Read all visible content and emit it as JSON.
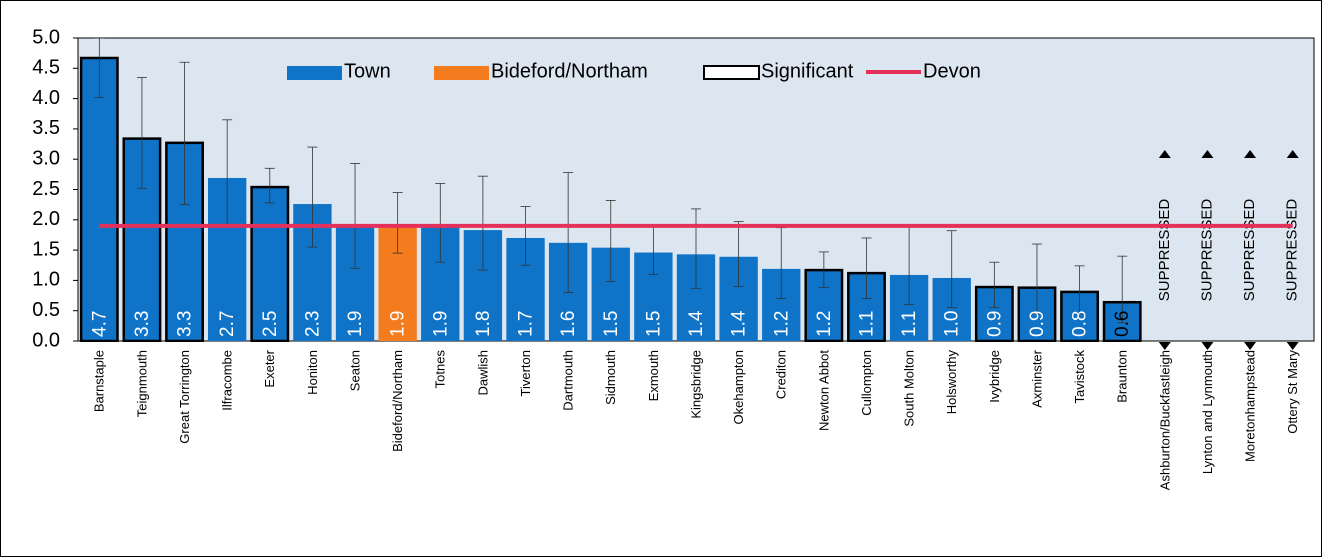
{
  "chart_data": {
    "type": "bar",
    "categories": [
      "Barnstaple",
      "Teignmouth",
      "Great Torrington",
      "Ilfracombe",
      "Exeter",
      "Honiton",
      "Seaton",
      "Bideford/Northam",
      "Totnes",
      "Dawlish",
      "Tiverton",
      "Dartmouth",
      "Sidmouth",
      "Exmouth",
      "Kingsbridge",
      "Okehampton",
      "Crediton",
      "Newton Abbot",
      "Cullompton",
      "South Molton",
      "Holsworthy",
      "Ivybridge",
      "Axminster",
      "Tavistock",
      "Braunton",
      "Ashburton/Buckfastleigh",
      "Lynton and Lynmouth",
      "Moretonhampstead",
      "Ottery St Mary"
    ],
    "values": [
      4.67,
      3.34,
      3.27,
      2.69,
      2.54,
      2.26,
      1.91,
      1.9,
      1.88,
      1.83,
      1.7,
      1.62,
      1.54,
      1.46,
      1.43,
      1.39,
      1.19,
      1.17,
      1.12,
      1.09,
      1.04,
      0.89,
      0.88,
      0.81,
      0.64,
      null,
      null,
      null,
      null
    ],
    "value_labels": [
      "4.7",
      "3.3",
      "3.3",
      "2.7",
      "2.5",
      "2.3",
      "1.9",
      "1.9",
      "1.9",
      "1.8",
      "1.7",
      "1.6",
      "1.5",
      "1.5",
      "1.4",
      "1.4",
      "1.2",
      "1.2",
      "1.1",
      "1.1",
      "1.0",
      "0.9",
      "0.9",
      "0.8",
      "0.6",
      "SUPPRESSED",
      "SUPPRESSED",
      "SUPPRESSED",
      "SUPPRESSED"
    ],
    "ci_low": [
      4.02,
      2.52,
      2.25,
      1.9,
      2.28,
      1.55,
      1.2,
      1.45,
      1.3,
      1.17,
      1.25,
      0.8,
      0.98,
      1.1,
      0.87,
      0.9,
      0.7,
      0.88,
      0.7,
      0.6,
      0.55,
      0.55,
      0.45,
      0.45,
      0.3,
      null,
      null,
      null,
      null
    ],
    "ci_high": [
      5.0,
      4.35,
      4.6,
      3.65,
      2.85,
      3.2,
      2.93,
      2.45,
      2.6,
      2.72,
      2.22,
      2.78,
      2.32,
      1.9,
      2.18,
      1.97,
      1.87,
      1.47,
      1.7,
      1.9,
      1.82,
      1.3,
      1.6,
      1.24,
      1.4,
      null,
      null,
      null,
      null
    ],
    "significant": [
      true,
      true,
      true,
      false,
      true,
      false,
      false,
      false,
      false,
      false,
      false,
      false,
      false,
      false,
      false,
      false,
      false,
      true,
      true,
      false,
      false,
      true,
      true,
      true,
      true,
      false,
      false,
      false,
      false
    ],
    "highlight": [
      false,
      false,
      false,
      false,
      false,
      false,
      false,
      true,
      false,
      false,
      false,
      false,
      false,
      false,
      false,
      false,
      false,
      false,
      false,
      false,
      false,
      false,
      false,
      false,
      false,
      false,
      false,
      false,
      false
    ],
    "legend": [
      {
        "name": "Town",
        "color": "#0f74c7"
      },
      {
        "name": "Bideford/Northam",
        "color": "#f57b1f"
      },
      {
        "name": "Significant",
        "color": "#000000"
      },
      {
        "name": "Devon",
        "color": "#e5305a"
      }
    ],
    "reference_value": 1.9,
    "ylim": [
      0,
      5
    ],
    "yticks": [
      {
        "value": 0,
        "label": "0.0"
      },
      {
        "value": 0.5,
        "label": "0.5"
      },
      {
        "value": 1,
        "label": "1.0"
      },
      {
        "value": 1.5,
        "label": "1.5"
      },
      {
        "value": 2,
        "label": "2.0"
      },
      {
        "value": 2.5,
        "label": "2.5"
      },
      {
        "value": 3,
        "label": "3.0"
      },
      {
        "value": 3.5,
        "label": "3.5"
      },
      {
        "value": 4,
        "label": "4.0"
      },
      {
        "value": 4.5,
        "label": "4.5"
      },
      {
        "value": 5,
        "label": "5.0"
      }
    ]
  }
}
